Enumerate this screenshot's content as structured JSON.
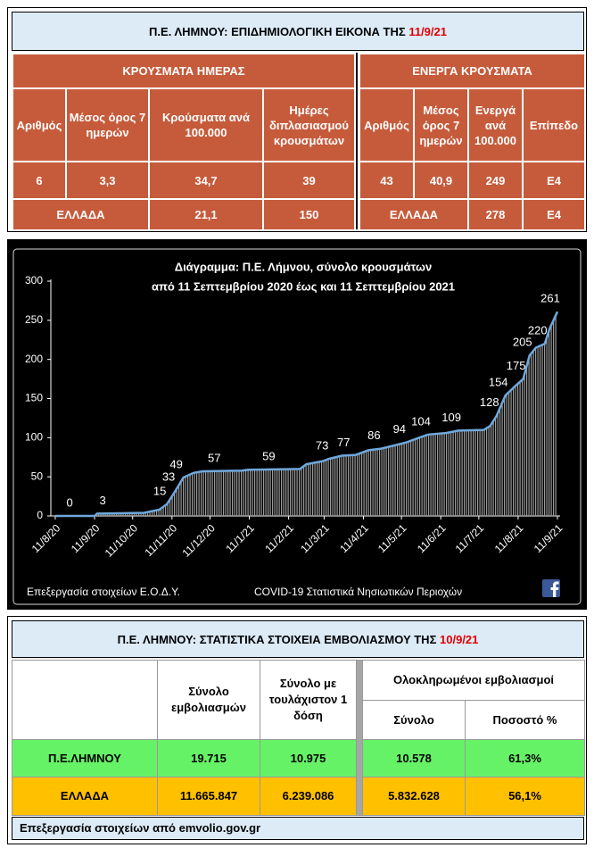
{
  "epi_table": {
    "title": "Π.Ε. ΛΗΜΝΟΥ: ΕΠΙΔΗΜΙΟΛΟΓΙΚΗ ΕΙΚΟΝΑ ΤΗΣ",
    "date": "11/9/21",
    "daily": {
      "heading": "ΚΡΟΥΣΜΑΤΑ ΗΜΕΡΑΣ",
      "columns": [
        "Αριθμός",
        "Μέσος όρος 7 ημερών",
        "Κρούσματα ανά 100.000",
        "Ημέρες διπλασιασμού κρουσμάτων"
      ],
      "row": [
        "6",
        "3,3",
        "34,7",
        "39"
      ],
      "greece": {
        "label": "ΕΛΛΑΔΑ",
        "values": [
          "21,1",
          "150"
        ]
      }
    },
    "active": {
      "heading": "ΕΝΕΡΓΑ ΚΡΟΥΣΜΑΤΑ",
      "columns": [
        "Αριθμός",
        "Μέσος όρος 7 ημερών",
        "Ενεργά ανά 100.000",
        "Επίπεδο"
      ],
      "row": [
        "43",
        "40,9",
        "249",
        "E4"
      ],
      "greece": {
        "label": "ΕΛΛΑΔΑ",
        "values": [
          "278",
          "E4"
        ]
      }
    }
  },
  "chart_data": {
    "type": "line",
    "title": "Διάγραμμα:  Π.Ε. Λήμνου, σύνολο κρουσμάτων",
    "subtitle": "από 11 Σεπτεμβρίου 2020 έως και 11 Σεπτεμβρίου 2021",
    "x": [
      "11/8/20",
      "11/9/20",
      "13/9/20",
      "20/10/20",
      "1/11/20",
      "7/11/20",
      "11/11/20",
      "14/11/20",
      "20/11/20",
      "28/11/20",
      "5/12/20",
      "5/1/21",
      "10/1/21",
      "20/2/21",
      "25/2/21",
      "10/3/21",
      "15/3/21",
      "25/3/21",
      "5/4/21",
      "15/4/21",
      "25/4/21",
      "5/5/21",
      "15/5/21",
      "25/5/21",
      "1/6/21",
      "15/6/21",
      "25/6/21",
      "15/7/21",
      "20/7/21",
      "25/7/21",
      "1/8/21",
      "8/8/21",
      "15/8/21",
      "20/8/21",
      "25/8/21",
      "1/9/21",
      "5/9/21",
      "11/9/21"
    ],
    "values": [
      0,
      0,
      3,
      4,
      8,
      15,
      25,
      33,
      49,
      55,
      57,
      58,
      59,
      60,
      66,
      70,
      73,
      77,
      78,
      84,
      86,
      90,
      94,
      100,
      104,
      106,
      109,
      110,
      115,
      128,
      154,
      165,
      175,
      205,
      215,
      220,
      240,
      261
    ],
    "color": "#6fa8dc",
    "annotations": [
      {
        "x": "28/8/20",
        "value": 0
      },
      {
        "x": "23/9/20",
        "value": 3
      },
      {
        "x": "7/11/20",
        "value": 15
      },
      {
        "x": "14/11/20",
        "value": 33
      },
      {
        "x": "20/11/20",
        "value": 49
      },
      {
        "x": "20/12/20",
        "value": 57
      },
      {
        "x": "1/2/21",
        "value": 59
      },
      {
        "x": "15/3/21",
        "value": 73
      },
      {
        "x": "1/4/21",
        "value": 77
      },
      {
        "x": "25/4/21",
        "value": 86
      },
      {
        "x": "15/5/21",
        "value": 94
      },
      {
        "x": "1/6/21",
        "value": 104
      },
      {
        "x": "25/6/21",
        "value": 109
      },
      {
        "x": "25/7/21",
        "value": 128
      },
      {
        "x": "1/8/21",
        "value": 154
      },
      {
        "x": "15/8/21",
        "value": 175
      },
      {
        "x": "20/8/21",
        "value": 205
      },
      {
        "x": "1/9/21",
        "value": 220
      },
      {
        "x": "11/9/21",
        "value": 261
      }
    ],
    "xlim": [
      "11/8/20",
      "11/9/21"
    ],
    "xticks": [
      "11/8/20",
      "11/9/20",
      "11/10/20",
      "11/11/20",
      "11/12/20",
      "11/1/21",
      "11/2/21",
      "11/3/21",
      "11/4/21",
      "11/5/21",
      "11/6/21",
      "11/7/21",
      "11/8/21",
      "11/9/21"
    ],
    "ylim": [
      0,
      300
    ],
    "yticks": [
      0,
      50,
      100,
      150,
      200,
      250,
      300
    ],
    "source": "Επεξεργασία στοιχείων Ε.Ο.Δ.Υ.",
    "credit": "COVID-19 Στατιστικά Νησιωτικών Περιοχών"
  },
  "vaccine_table": {
    "title": "Π.Ε. ΛΗΜΝΟΥ: ΣΤΑΤΙΣΤΙΚΑ ΣΤΟΙΧΕΙΑ ΕΜΒΟΛΙΑΣΜΟΥ ΤΗΣ",
    "date": "10/9/21",
    "columns": [
      "Σύνολο εμβολιασμών",
      "Σύνολο με τουλάχιστον 1 δόση"
    ],
    "group": "Ολοκληρωμένοι εμβολιασμοί",
    "subcolumns": [
      "Σύνολο",
      "Ποσοστό %"
    ],
    "rows": [
      [
        "Π.Ε.ΛΗΜΝΟΥ",
        "19.715",
        "10.975",
        "10.578",
        "61,3%"
      ],
      [
        "ΕΛΛΑΔΑ",
        "11.665.847",
        "6.239.086",
        "5.832.628",
        "56,1%"
      ]
    ],
    "source": "Επεξεργασία στοιχείων από  emvolio.gov.gr"
  }
}
